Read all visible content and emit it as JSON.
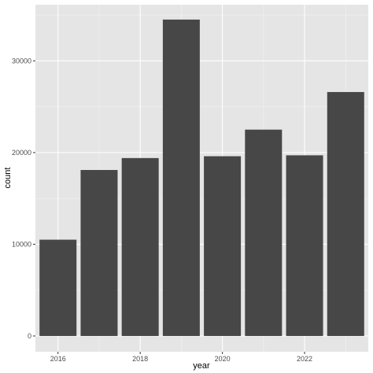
{
  "chart_data": {
    "type": "bar",
    "title": "",
    "xlabel": "year",
    "ylabel": "count",
    "x": [
      2016,
      2017,
      2018,
      2019,
      2020,
      2021,
      2022,
      2023
    ],
    "values": [
      10500,
      18100,
      19400,
      34500,
      19600,
      22500,
      19700,
      26600
    ],
    "xlim": [
      2015.45,
      2023.55
    ],
    "ylim": [
      -1720,
      36120
    ],
    "x_ticks": [
      2016,
      2018,
      2020,
      2022
    ],
    "x_tick_labels": [
      "2016",
      "2018",
      "2020",
      "2022"
    ],
    "y_ticks": [
      0,
      10000,
      20000,
      30000
    ],
    "y_tick_labels": [
      "0",
      "10000",
      "20000",
      "30000"
    ],
    "grid": true,
    "legend": "none",
    "colors": {
      "bar": "#474747",
      "panel_background": "#e5e5e5",
      "grid_major": "#ffffff",
      "grid_minor": "#f2f2f2",
      "tick_label": "#4d4d4d"
    }
  }
}
